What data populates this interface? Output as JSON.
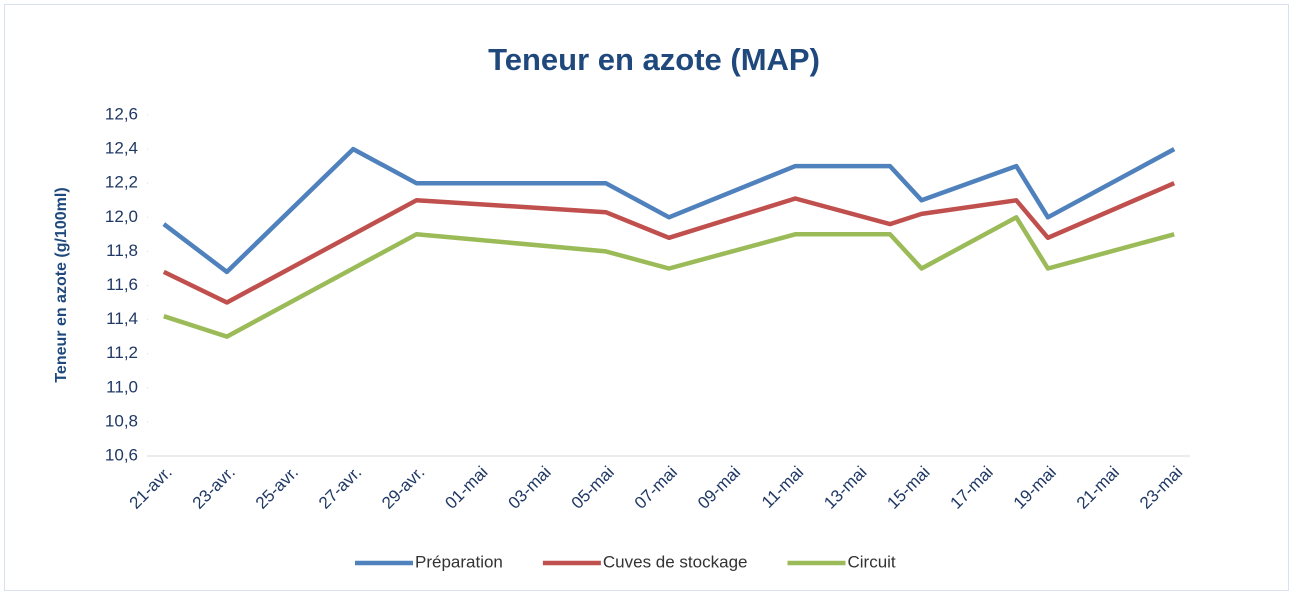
{
  "chart_data": {
    "type": "line",
    "title": "Teneur en azote (MAP)",
    "y_label": "Teneur en azote (g/100ml)",
    "xticks": [
      "21-avr.",
      "23-avr.",
      "25-avr.",
      "27-avr.",
      "29-avr.",
      "01-mai",
      "03-mai",
      "05-mai",
      "07-mai",
      "09-mai",
      "11-mai",
      "13-mai",
      "15-mai",
      "17-mai",
      "19-mai",
      "21-mai",
      "23-mai"
    ],
    "ylim": [
      10.6,
      12.6
    ],
    "yticks": [
      {
        "value": 10.6,
        "label": "10,6"
      },
      {
        "value": 10.8,
        "label": "10,8"
      },
      {
        "value": 11.0,
        "label": "11,0"
      },
      {
        "value": 11.2,
        "label": "11,2"
      },
      {
        "value": 11.4,
        "label": "11,4"
      },
      {
        "value": 11.6,
        "label": "11,6"
      },
      {
        "value": 11.8,
        "label": "11,8"
      },
      {
        "value": 12.0,
        "label": "12,0"
      },
      {
        "value": 12.2,
        "label": "12,2"
      },
      {
        "value": 12.4,
        "label": "12,4"
      },
      {
        "value": 12.6,
        "label": "12,6"
      }
    ],
    "grid": false,
    "legend": "bottom",
    "series": [
      {
        "name": "Préparation",
        "color": "#4f81bd",
        "x": [
          "21-avr.",
          "23-avr.",
          "27-avr.",
          "29-avr.",
          "05-mai",
          "07-mai",
          "11-mai",
          "14-mai",
          "15-mai",
          "18-mai",
          "19-mai",
          "23-mai"
        ],
        "values": [
          11.96,
          11.68,
          12.4,
          12.2,
          12.2,
          12.0,
          12.3,
          12.3,
          12.1,
          12.3,
          12.0,
          12.4
        ]
      },
      {
        "name": "Cuves de stockage",
        "color": "#c0504d",
        "x": [
          "21-avr.",
          "23-avr.",
          "29-avr.",
          "05-mai",
          "07-mai",
          "11-mai",
          "14-mai",
          "15-mai",
          "18-mai",
          "19-mai",
          "23-mai"
        ],
        "values": [
          11.68,
          11.5,
          12.1,
          12.03,
          11.88,
          12.11,
          11.96,
          12.02,
          12.1,
          11.88,
          12.2
        ]
      },
      {
        "name": "Circuit",
        "color": "#9bbb59",
        "x": [
          "21-avr.",
          "23-avr.",
          "29-avr.",
          "05-mai",
          "07-mai",
          "11-mai",
          "14-mai",
          "15-mai",
          "18-mai",
          "19-mai",
          "23-mai"
        ],
        "values": [
          11.42,
          11.3,
          11.9,
          11.8,
          11.7,
          11.9,
          11.9,
          11.7,
          12.0,
          11.7,
          11.9
        ]
      }
    ]
  }
}
